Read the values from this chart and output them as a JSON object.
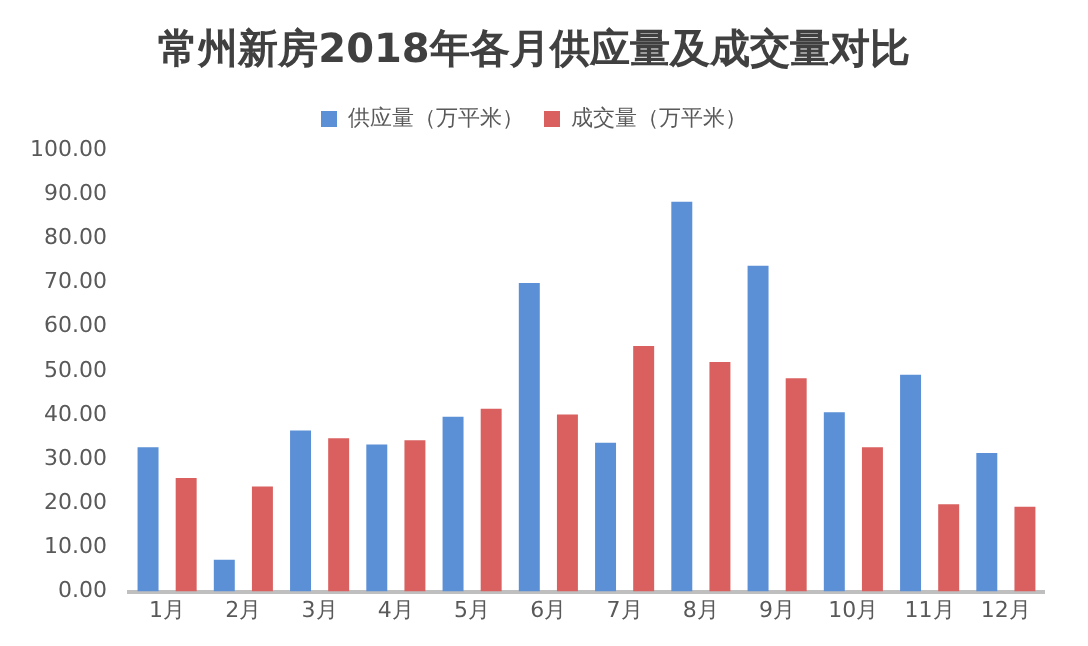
{
  "chart_data": {
    "type": "bar",
    "title": "常州新房2018年各月供应量及成交量对比",
    "categories": [
      "1月",
      "2月",
      "3月",
      "4月",
      "5月",
      "6月",
      "7月",
      "8月",
      "9月",
      "10月",
      "11月",
      "12月"
    ],
    "series": [
      {
        "name": "供应量（万平米）",
        "color": "#5b8fd6",
        "values": [
          32.7,
          7.2,
          36.5,
          33.3,
          39.6,
          69.9,
          33.7,
          88.3,
          73.8,
          40.6,
          49.1,
          31.4
        ]
      },
      {
        "name": "成交量（万平米）",
        "color": "#d9605f",
        "values": [
          25.7,
          23.8,
          34.7,
          34.3,
          41.4,
          40.1,
          55.6,
          52,
          48.3,
          32.7,
          19.8,
          19.2
        ]
      }
    ],
    "ylim": [
      0,
      100
    ],
    "yticks": [
      {
        "value": 0,
        "label": "0.00"
      },
      {
        "value": 10,
        "label": "10.00"
      },
      {
        "value": 20,
        "label": "20.00"
      },
      {
        "value": 30,
        "label": "30.00"
      },
      {
        "value": 40,
        "label": "40.00"
      },
      {
        "value": 50,
        "label": "50.00"
      },
      {
        "value": 60,
        "label": "60.00"
      },
      {
        "value": 70,
        "label": "70.00"
      },
      {
        "value": 80,
        "label": "80.00"
      },
      {
        "value": 90,
        "label": "90.00"
      },
      {
        "value": 100,
        "label": "100.00"
      }
    ],
    "grid": false,
    "legend": "top"
  }
}
